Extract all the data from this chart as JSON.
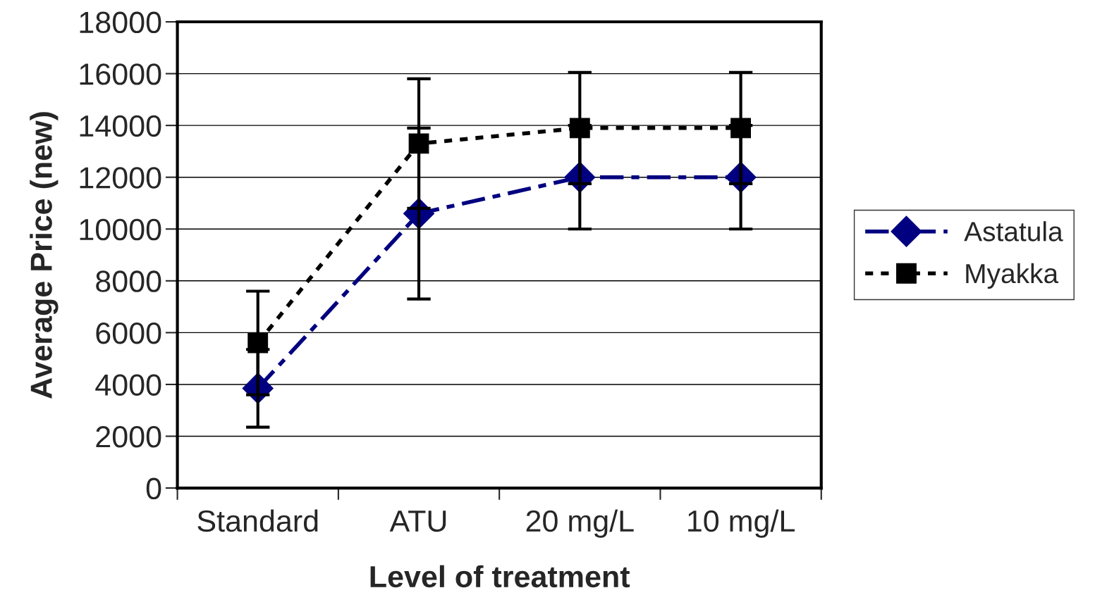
{
  "chart_data": {
    "type": "line",
    "xlabel": "Level of treatment",
    "ylabel": "Average Price (new)",
    "categories": [
      "Standard",
      "ATU",
      "20 mg/L",
      "10 mg/L"
    ],
    "series": [
      {
        "name": "Astatula",
        "color": "#000080",
        "values": [
          3850,
          10600,
          12000,
          12000
        ],
        "errors": [
          1500,
          3300,
          2000,
          2000
        ],
        "marker": "diamond",
        "line_style": "dashed"
      },
      {
        "name": "Myakka",
        "color": "#000000",
        "values": [
          5600,
          13300,
          13900,
          13900
        ],
        "errors": [
          2000,
          2500,
          2150,
          2150
        ],
        "marker": "square",
        "line_style": "dotted"
      }
    ],
    "ylim": [
      0,
      18000
    ],
    "yticks": [
      0,
      2000,
      4000,
      6000,
      8000,
      10000,
      12000,
      14000,
      16000,
      18000
    ],
    "grid": "y",
    "legend": "right"
  }
}
